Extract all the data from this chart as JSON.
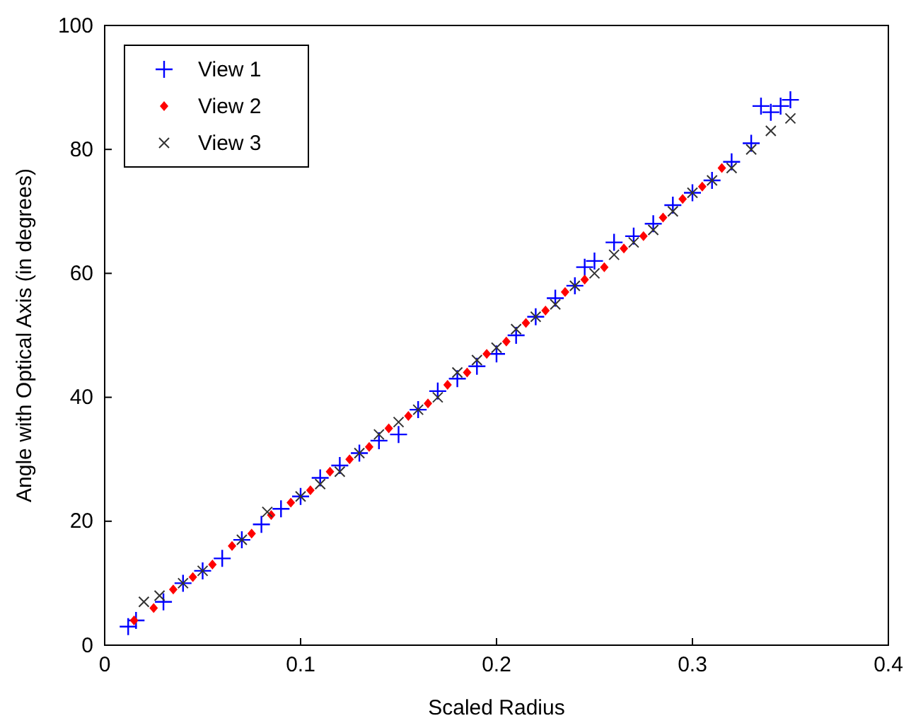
{
  "chart_data": {
    "type": "scatter",
    "xlabel": "Scaled Radius",
    "ylabel": "Angle with Optical Axis (in degrees)",
    "xlim": [
      0,
      0.4
    ],
    "ylim": [
      0,
      100
    ],
    "xticks": [
      0,
      0.1,
      0.2,
      0.3,
      0.4
    ],
    "yticks": [
      0,
      20,
      40,
      60,
      80,
      100
    ],
    "grid": false,
    "legend": "top left",
    "series": [
      {
        "name": "View 1",
        "color": "#0000ff",
        "marker": "plus",
        "x": [
          0.012,
          0.016,
          0.03,
          0.04,
          0.05,
          0.06,
          0.07,
          0.08,
          0.09,
          0.1,
          0.11,
          0.12,
          0.13,
          0.14,
          0.15,
          0.16,
          0.17,
          0.18,
          0.19,
          0.2,
          0.21,
          0.22,
          0.23,
          0.24,
          0.245,
          0.25,
          0.26,
          0.27,
          0.28,
          0.29,
          0.3,
          0.31,
          0.32,
          0.33,
          0.335,
          0.34,
          0.345,
          0.35
        ],
        "values": [
          3,
          4,
          7,
          10,
          12,
          14,
          17,
          19.5,
          22,
          24,
          27,
          29,
          31,
          33,
          34,
          38,
          41,
          43,
          45,
          47,
          50,
          53,
          56,
          58,
          61,
          62,
          65,
          66,
          68,
          71,
          73,
          75,
          78,
          81,
          87,
          86,
          87,
          88
        ]
      },
      {
        "name": "View 2",
        "color": "#ff0000",
        "marker": "diamond",
        "x": [
          0.015,
          0.025,
          0.035,
          0.045,
          0.055,
          0.065,
          0.075,
          0.085,
          0.095,
          0.105,
          0.115,
          0.125,
          0.135,
          0.145,
          0.155,
          0.165,
          0.175,
          0.185,
          0.195,
          0.205,
          0.215,
          0.225,
          0.235,
          0.245,
          0.255,
          0.265,
          0.275,
          0.285,
          0.295,
          0.305,
          0.315
        ],
        "values": [
          4,
          6,
          9,
          11,
          13,
          16,
          18,
          21,
          23,
          25,
          28,
          30,
          32,
          35,
          37,
          39,
          42,
          44,
          47,
          49,
          52,
          54,
          57,
          59,
          61,
          64,
          66,
          69,
          72,
          74,
          77
        ]
      },
      {
        "name": "View 3",
        "color": "#333333",
        "marker": "cross",
        "x": [
          0.02,
          0.028,
          0.04,
          0.05,
          0.07,
          0.083,
          0.1,
          0.11,
          0.12,
          0.13,
          0.14,
          0.15,
          0.16,
          0.17,
          0.18,
          0.19,
          0.2,
          0.21,
          0.22,
          0.23,
          0.24,
          0.25,
          0.26,
          0.27,
          0.28,
          0.29,
          0.3,
          0.31,
          0.32,
          0.33,
          0.34,
          0.35
        ],
        "values": [
          7,
          8,
          10,
          12,
          17,
          21.5,
          24,
          26,
          28,
          31,
          34,
          36,
          38,
          40,
          44,
          46,
          48,
          51,
          53,
          55,
          58,
          60,
          63,
          65,
          67,
          70,
          73,
          75,
          77,
          80,
          83,
          85
        ]
      }
    ]
  }
}
